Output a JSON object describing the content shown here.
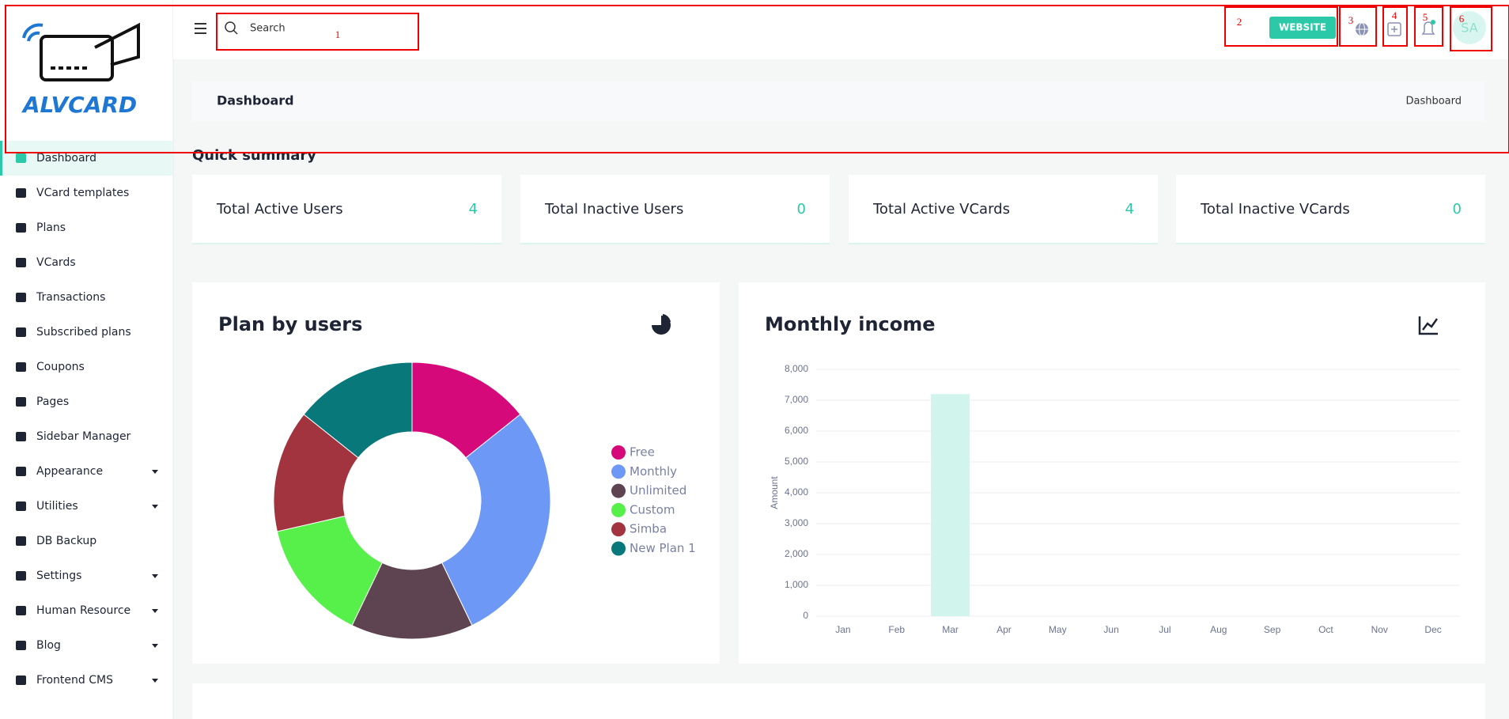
{
  "annotations": [
    "1",
    "2",
    "3",
    "4",
    "5",
    "6"
  ],
  "logo": "ALVCARD",
  "header": {
    "search_placeholder": "Search",
    "website_button": "WEBSITE",
    "avatar": "SA"
  },
  "sidebar": [
    {
      "label": "Dashboard",
      "active": true
    },
    {
      "label": "VCard templates"
    },
    {
      "label": "Plans"
    },
    {
      "label": "VCards"
    },
    {
      "label": "Transactions"
    },
    {
      "label": "Subscribed plans"
    },
    {
      "label": "Coupons"
    },
    {
      "label": "Pages"
    },
    {
      "label": "Sidebar Manager"
    },
    {
      "label": "Appearance",
      "dropdown": true
    },
    {
      "label": "Utilities",
      "dropdown": true
    },
    {
      "label": "DB Backup"
    },
    {
      "label": "Settings",
      "dropdown": true
    },
    {
      "label": "Human Resource",
      "dropdown": true
    },
    {
      "label": "Blog",
      "dropdown": true
    },
    {
      "label": "Frontend CMS",
      "dropdown": true
    }
  ],
  "breadcrumb": {
    "title": "Dashboard",
    "trail": "Dashboard"
  },
  "summary": {
    "title": "Quick summary",
    "cards": [
      {
        "label": "Total Active Users",
        "value": 4
      },
      {
        "label": "Total Inactive Users",
        "value": 0
      },
      {
        "label": "Total Active VCards",
        "value": 4
      },
      {
        "label": "Total Inactive VCards",
        "value": 0
      }
    ]
  },
  "chart_data": [
    {
      "type": "doughnut",
      "title": "Plan by users",
      "categories": [
        "Free",
        "Monthly",
        "Unlimited",
        "Custom",
        "Simba",
        "New Plan 1"
      ],
      "values": [
        1,
        2,
        1,
        1,
        1,
        1
      ],
      "colors": [
        "#d6097a",
        "#6d98f5",
        "#5e4450",
        "#57f04a",
        "#a2343f",
        "#08787a"
      ],
      "legend": "right"
    },
    {
      "type": "bar",
      "title": "Monthly income",
      "y_label": "Amount",
      "categories": [
        "Jan",
        "Feb",
        "Mar",
        "Apr",
        "May",
        "Jun",
        "Jul",
        "Aug",
        "Sep",
        "Oct",
        "Nov",
        "Dec"
      ],
      "values": [
        0,
        0,
        7200,
        0,
        0,
        0,
        0,
        0,
        0,
        0,
        0,
        0
      ],
      "color": "#d1f5ec",
      "ylim": [
        0,
        8000
      ],
      "yticks": [
        0,
        {
          "value": 1000,
          "label": "1,000"
        },
        {
          "value": 2000,
          "label": "2,000"
        },
        {
          "value": 3000,
          "label": "3,000"
        },
        {
          "value": 4000,
          "label": "4,000"
        },
        {
          "value": 5000,
          "label": "5,000"
        },
        {
          "value": 6000,
          "label": "6,000"
        },
        {
          "value": 7000,
          "label": "7,000"
        },
        {
          "value": 8000,
          "label": "8,000"
        }
      ],
      "grid": true
    }
  ]
}
